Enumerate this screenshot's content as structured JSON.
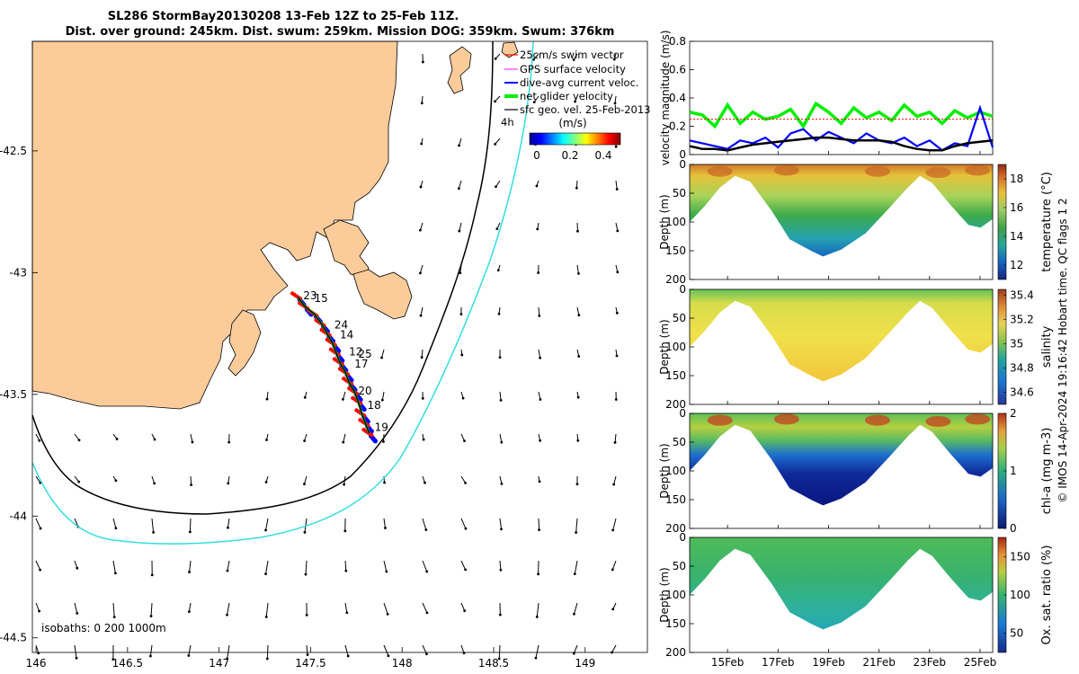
{
  "title": {
    "line1": "SL286 StormBay20130208 13-Feb 12Z to 25-Feb 11Z.",
    "line2": "Dist. over ground: 245km. Dist. swum: 259km. Mission DOG: 359km. Swum: 376km"
  },
  "footer_note": "© IMOS 14-Apr-2024 19:16:42 Hobart time. QC flags 1  2",
  "colors": {
    "land": "#fbcb9a",
    "isobath_200": "#000000",
    "isobath_1000": "#33dddd",
    "swim_vector": "#ff0000",
    "gps_surface": "#ff33ff",
    "dive_avg": "#0000ff",
    "net_glider": "#00ee00",
    "sfc_geo": "#000000"
  },
  "chart_data": [
    {
      "type": "map",
      "x": {
        "ticks": [
          146,
          146.5,
          147,
          147.5,
          148,
          148.5,
          149
        ],
        "lim": [
          145.98,
          149.34
        ]
      },
      "y": {
        "ticks": [
          -42.5,
          -43,
          -43.5,
          -44,
          -44.5
        ],
        "lim": [
          -44.56,
          -42.05
        ]
      },
      "isobaths_label": "isobaths: 0   200  1000m",
      "legend": {
        "swim": "25cm/s swim vector",
        "gps": "GPS surface velocity",
        "dive": "dive-avg current veloc.",
        "net": "net glider velocity",
        "sfc": "sfc geo. vel. 25-Feb-2013",
        "hour": "4h",
        "unit": "(m/s)",
        "cb_ticks": [
          "0",
          "0.2",
          "0.4"
        ]
      },
      "track_points": [
        [
          147.43,
          -43.1
        ],
        [
          147.47,
          -43.14
        ],
        [
          147.52,
          -43.17
        ],
        [
          147.56,
          -43.21
        ],
        [
          147.59,
          -43.25
        ],
        [
          147.62,
          -43.29
        ],
        [
          147.64,
          -43.33
        ],
        [
          147.66,
          -43.37
        ],
        [
          147.69,
          -43.41
        ],
        [
          147.71,
          -43.45
        ],
        [
          147.74,
          -43.49
        ],
        [
          147.76,
          -43.53
        ],
        [
          147.78,
          -43.58
        ],
        [
          147.8,
          -43.62
        ],
        [
          147.82,
          -43.66
        ]
      ],
      "day_labels": [
        {
          "text": "23",
          "lon": 147.46,
          "lat": -43.11
        },
        {
          "text": "15",
          "lon": 147.52,
          "lat": -43.12
        },
        {
          "text": "24",
          "lon": 147.63,
          "lat": -43.23
        },
        {
          "text": "14",
          "lon": 147.66,
          "lat": -43.27
        },
        {
          "text": "12",
          "lon": 147.71,
          "lat": -43.34
        },
        {
          "text": "25",
          "lon": 147.76,
          "lat": -43.35
        },
        {
          "text": "17",
          "lon": 147.74,
          "lat": -43.39
        },
        {
          "text": "20",
          "lon": 147.76,
          "lat": -43.5
        },
        {
          "text": "18",
          "lon": 147.81,
          "lat": -43.56
        },
        {
          "text": "19",
          "lon": 147.85,
          "lat": -43.65
        }
      ]
    },
    {
      "type": "line",
      "ylabel": "velocity magnitude (m/s)",
      "ylim": [
        0,
        0.8
      ],
      "yticks": [
        "0",
        "0.2",
        "0.4",
        "0.6",
        "0.8"
      ],
      "x": [
        0,
        0.5,
        1,
        1.5,
        2,
        2.5,
        3,
        3.5,
        4,
        4.5,
        5,
        5.5,
        6,
        6.5,
        7,
        7.5,
        8,
        8.5,
        9,
        9.5,
        10,
        10.5,
        11,
        11.5,
        12
      ],
      "series": [
        {
          "color": "net_glider",
          "values": [
            0.3,
            0.28,
            0.2,
            0.35,
            0.22,
            0.3,
            0.25,
            0.27,
            0.32,
            0.2,
            0.36,
            0.3,
            0.22,
            0.33,
            0.26,
            0.3,
            0.24,
            0.35,
            0.27,
            0.3,
            0.22,
            0.31,
            0.26,
            0.3,
            0.27
          ]
        },
        {
          "color": "dive_avg",
          "values": [
            0.1,
            0.08,
            0.06,
            0.04,
            0.1,
            0.08,
            0.12,
            0.05,
            0.15,
            0.18,
            0.1,
            0.16,
            0.12,
            0.08,
            0.15,
            0.1,
            0.08,
            0.12,
            0.06,
            0.1,
            0.03,
            0.08,
            0.06,
            0.33,
            0.05
          ]
        },
        {
          "color": "sfc_geo",
          "values": [
            0.06,
            0.04,
            0.04,
            0.03,
            0.05,
            0.07,
            0.08,
            0.09,
            0.1,
            0.11,
            0.12,
            0.12,
            0.11,
            0.1,
            0.1,
            0.1,
            0.09,
            0.06,
            0.04,
            0.03,
            0.03,
            0.06,
            0.08,
            0.09,
            0.1
          ]
        }
      ]
    },
    {
      "type": "heatmap",
      "ylabel": "Depth (m)",
      "cblabel": "temperature (°C)",
      "cb_ticks": [
        "12",
        "14",
        "16",
        "18"
      ],
      "clim": [
        11,
        19
      ]
    },
    {
      "type": "heatmap",
      "ylabel": "Depth (m)",
      "cblabel": "salinity",
      "cb_ticks": [
        "34.6",
        "34.8",
        "35",
        "35.2",
        "35.4"
      ],
      "clim": [
        34.5,
        35.45
      ]
    },
    {
      "type": "heatmap",
      "ylabel": "Depth (m)",
      "cblabel": "chl-a (mg m-3)",
      "cb_ticks": [
        "0",
        "1",
        "2"
      ],
      "clim": [
        0,
        2
      ]
    },
    {
      "type": "heatmap",
      "ylabel": "Depth (m)",
      "cblabel": "Ox. sat. ratio (%)",
      "cb_ticks": [
        "50",
        "100",
        "150"
      ],
      "clim": [
        25,
        175
      ]
    }
  ],
  "depth_ticks": [
    "0",
    "50",
    "100",
    "150",
    "200"
  ],
  "date_ticks": [
    "15Feb",
    "17Feb",
    "19Feb",
    "21Feb",
    "23Feb",
    "25Feb"
  ]
}
